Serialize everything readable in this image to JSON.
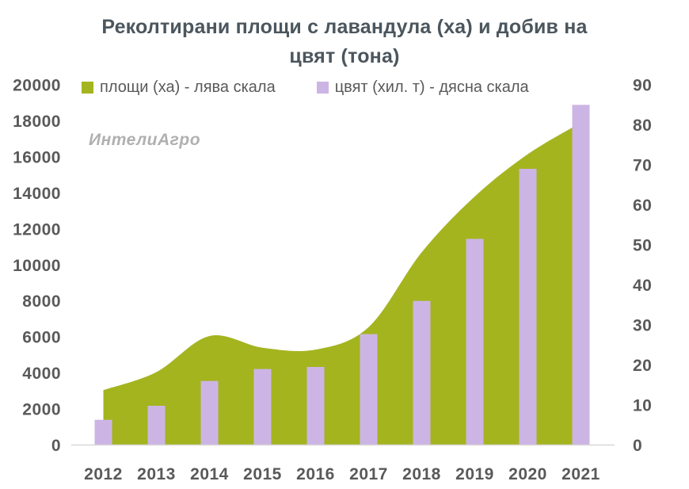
{
  "title": "Реколтирани площи с лавандула (ха) и добив на цвят (тона)",
  "watermark": "ИнтелиАгро",
  "legend": [
    {
      "label": "площи (ха) - лява скала",
      "color": "#a4b41f"
    },
    {
      "label": "цвят (хил. т) - дясна скала",
      "color": "#ccb5e4"
    }
  ],
  "colors": {
    "area_series": "#a4b41f",
    "bar_series": "#ccb5e4",
    "title_text": "#4b565e",
    "tick_text": "#595959",
    "axis_line": "#d8d8d8",
    "watermark_text": "#b0b0b0"
  },
  "chart_data": {
    "type": "combo (area + bar, dual axis)",
    "title": "Реколтирани площи с лавандула (ха) и добив на цвят (тона)",
    "categories": [
      "2012",
      "2013",
      "2014",
      "2015",
      "2016",
      "2017",
      "2018",
      "2019",
      "2020",
      "2021"
    ],
    "series": [
      {
        "name": "площи (ха) - лява скала",
        "type": "area",
        "axis": "left",
        "color": "#a4b41f",
        "values": [
          3050,
          4050,
          6050,
          5400,
          5300,
          6550,
          10700,
          13800,
          16150,
          17900
        ]
      },
      {
        "name": "цвят (хил. т) - дясна скала",
        "type": "bar",
        "axis": "right",
        "color": "#ccb5e4",
        "values": [
          6.3,
          9.8,
          16,
          19,
          19.5,
          27.7,
          36,
          51.5,
          69,
          85
        ]
      }
    ],
    "left_axis": {
      "min": 0,
      "max": 20000,
      "step": 2000,
      "tick_labels": [
        "0",
        "2000",
        "4000",
        "6000",
        "8000",
        "10000",
        "12000",
        "14000",
        "16000",
        "18000",
        "20000"
      ]
    },
    "right_axis": {
      "min": 0,
      "max": 90,
      "step": 10,
      "tick_labels": [
        "0",
        "10",
        "20",
        "30",
        "40",
        "50",
        "60",
        "70",
        "80",
        "90"
      ]
    },
    "grid": false,
    "legend_position": "top",
    "xlabel": "",
    "ylabel_left": "площи (ха)",
    "ylabel_right": "цвят (хил. т)"
  }
}
